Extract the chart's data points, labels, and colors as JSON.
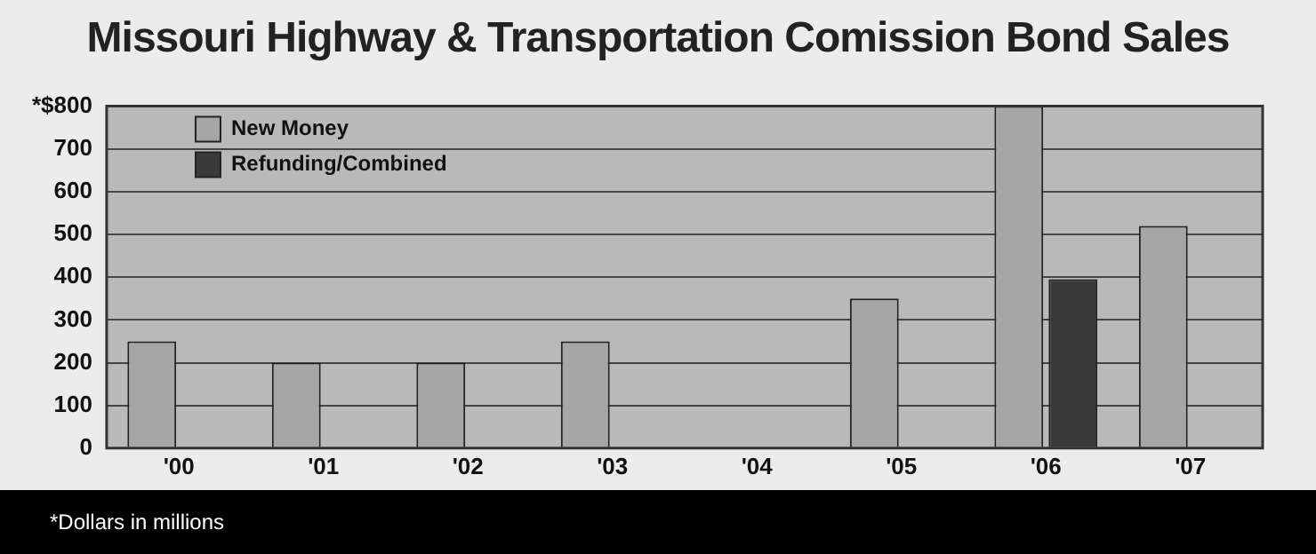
{
  "chart_data": {
    "type": "bar",
    "title": "Missouri Highway & Transportation Comission Bond Sales",
    "categories": [
      "'00",
      "'01",
      "'02",
      "'03",
      "'04",
      "'05",
      "'06",
      "'07"
    ],
    "series": [
      {
        "name": "New Money",
        "color": "#a6a6a6",
        "values": [
          250,
          200,
          200,
          250,
          null,
          350,
          800,
          520
        ]
      },
      {
        "name": "Refunding/Combined",
        "color": "#3a3a3a",
        "values": [
          null,
          null,
          null,
          null,
          null,
          null,
          395,
          null
        ]
      }
    ],
    "ylim": [
      0,
      800
    ],
    "yticks": [
      0,
      100,
      200,
      300,
      400,
      500,
      600,
      700,
      {
        "value": 800,
        "label": "*$800"
      }
    ],
    "grid": "y",
    "legend": "top left",
    "annotations": [
      "*Dollars in millions"
    ]
  }
}
